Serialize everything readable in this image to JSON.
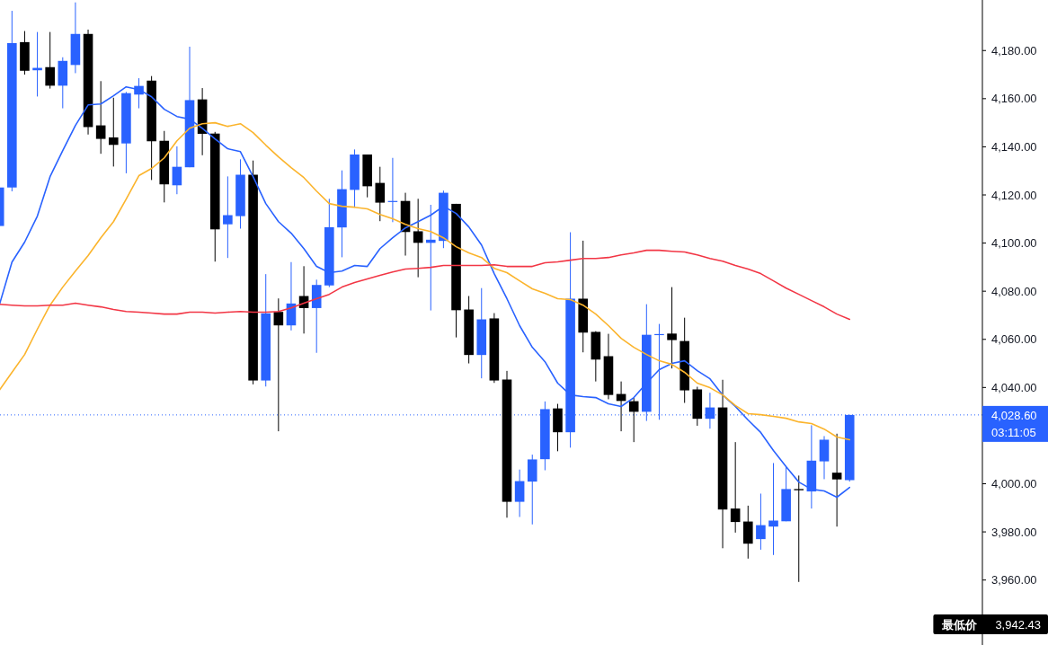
{
  "chart_data": {
    "type": "candlestick",
    "categories": [
      null,
      null,
      null,
      null,
      null,
      null,
      null,
      null,
      null,
      null,
      null,
      null,
      null,
      null,
      null,
      null,
      null,
      null,
      null,
      null,
      null,
      null,
      null,
      null,
      null,
      null,
      null,
      null,
      null,
      null,
      null,
      null,
      null,
      null,
      null,
      null,
      null,
      null,
      null,
      null,
      null,
      null,
      null,
      null,
      null,
      null,
      null,
      null,
      null,
      null,
      null,
      null,
      null,
      null,
      null,
      null,
      null,
      null,
      null,
      null,
      null,
      null,
      null,
      null,
      null,
      null,
      null,
      null
    ],
    "ohlc": [
      [
        4107.1,
        4123.1,
        4107.1,
        4123.1
      ],
      [
        4123.1,
        4196.5,
        4121.5,
        4183.1
      ],
      [
        4183.5,
        4188.1,
        4170.0,
        4171.6
      ],
      [
        4171.8,
        4187.7,
        4160.9,
        4172.8
      ],
      [
        4173.1,
        4187.7,
        4164.2,
        4165.4
      ],
      [
        4165.4,
        4177.2,
        4156.0,
        4175.7
      ],
      [
        4174.0,
        4200.0,
        4170.6,
        4186.9
      ],
      [
        4186.9,
        4188.7,
        4145.1,
        4148.2
      ],
      [
        4148.9,
        4167.3,
        4137.1,
        4143.3
      ],
      [
        4143.9,
        4160.4,
        4131.8,
        4140.8
      ],
      [
        4141.4,
        4162.8,
        4129.0,
        4162.3
      ],
      [
        4161.7,
        4168.5,
        4156.0,
        4165.3
      ],
      [
        4167.5,
        4169.4,
        4126.2,
        4142.3
      ],
      [
        4142.5,
        4146.6,
        4116.9,
        4124.4
      ],
      [
        4124.0,
        4140.2,
        4120.3,
        4131.7
      ],
      [
        4131.5,
        4181.6,
        4131.5,
        4159.4
      ],
      [
        4159.7,
        4164.4,
        4136.5,
        4145.4
      ],
      [
        4145.5,
        4146.2,
        4092.3,
        4105.7
      ],
      [
        4107.8,
        4127.7,
        4093.8,
        4111.6
      ],
      [
        4111.2,
        4134.8,
        4106.0,
        4128.4
      ],
      [
        4128.4,
        4134.3,
        4041.3,
        4042.9
      ],
      [
        4042.9,
        4087.1,
        4040.4,
        4070.8
      ],
      [
        4071.4,
        4077.0,
        4021.8,
        4065.8
      ],
      [
        4065.8,
        4092.1,
        4063.7,
        4074.9
      ],
      [
        4078.0,
        4090.4,
        4062.4,
        4073.0
      ],
      [
        4073.0,
        4084.8,
        4054.4,
        4082.6
      ],
      [
        4082.4,
        4118.4,
        4081.7,
        4106.6
      ],
      [
        4106.5,
        4130.2,
        4094.1,
        4122.4
      ],
      [
        4122.1,
        4138.9,
        4114.7,
        4136.8
      ],
      [
        4136.8,
        4136.8,
        4119.0,
        4123.6
      ],
      [
        4125.0,
        4131.7,
        4109.1,
        4116.8
      ],
      [
        4117.2,
        4135.4,
        4108.7,
        4117.5
      ],
      [
        4117.5,
        4120.9,
        4094.8,
        4104.6
      ],
      [
        4104.9,
        4118.4,
        4085.8,
        4100.1
      ],
      [
        4100.1,
        4115.9,
        4072.0,
        4101.4
      ],
      [
        4100.9,
        4121.8,
        4097.9,
        4120.9
      ],
      [
        4116.3,
        4116.3,
        4060.8,
        4072.1
      ],
      [
        4072.4,
        4078.0,
        4050.0,
        4053.5
      ],
      [
        4053.5,
        4081.3,
        4043.8,
        4068.3
      ],
      [
        4068.7,
        4070.9,
        4041.9,
        4042.9
      ],
      [
        4043.3,
        4046.9,
        3985.9,
        3992.5
      ],
      [
        3992.5,
        4005.9,
        3986.2,
        4001.1
      ],
      [
        4000.9,
        4012.1,
        3983.1,
        4010.1
      ],
      [
        4010.2,
        4034.2,
        4005.6,
        4031.0
      ],
      [
        4031.3,
        4033.2,
        4013.5,
        4021.4
      ],
      [
        4021.4,
        4104.5,
        4015.0,
        4076.9
      ],
      [
        4076.9,
        4101.0,
        4054.6,
        4062.8
      ],
      [
        4063.1,
        4063.4,
        4042.5,
        4051.6
      ],
      [
        4053.0,
        4062.3,
        4035.1,
        4036.9
      ],
      [
        4037.3,
        4042.5,
        4021.8,
        4034.4
      ],
      [
        4034.3,
        4035.7,
        4017.3,
        4029.9
      ],
      [
        4029.9,
        4074.6,
        4026.1,
        4061.9
      ],
      [
        4061.8,
        4066.4,
        4026.6,
        4062.2
      ],
      [
        4062.4,
        4081.7,
        4047.9,
        4059.7
      ],
      [
        4059.3,
        4069.0,
        4033.6,
        4038.8
      ],
      [
        4039.2,
        4040.3,
        4024.1,
        4027.0
      ],
      [
        4027.0,
        4037.8,
        4022.9,
        4031.7
      ],
      [
        4031.7,
        4043.2,
        3973.2,
        3989.3
      ],
      [
        3989.7,
        4017.3,
        3979.7,
        3984.1
      ],
      [
        3984.3,
        3990.9,
        3968.9,
        3975.1
      ],
      [
        3977.0,
        3995.9,
        3972.6,
        3982.8
      ],
      [
        3982.2,
        4008.6,
        3970.4,
        3984.7
      ],
      [
        3984.4,
        4007.1,
        3984.4,
        3997.8
      ],
      [
        3997.8,
        4003.4,
        3959.2,
        3997.3
      ],
      [
        3996.8,
        4024.3,
        3989.7,
        4009.6
      ],
      [
        4009.3,
        4019.8,
        4001.9,
        4018.3
      ],
      [
        4004.6,
        4020.8,
        3982.2,
        4001.8
      ],
      [
        4001.5,
        4028.6,
        4000.9,
        4028.6
      ]
    ],
    "colors": [
      "#2962ff",
      "#2962ff",
      "#000000",
      "#2962ff",
      "#000000",
      "#2962ff",
      "#2962ff",
      "#000000",
      "#000000",
      "#000000",
      "#2962ff",
      "#2962ff",
      "#000000",
      "#000000",
      "#2962ff",
      "#2962ff",
      "#000000",
      "#000000",
      "#2962ff",
      "#2962ff",
      "#000000",
      "#2962ff",
      "#000000",
      "#2962ff",
      "#000000",
      "#2962ff",
      "#2962ff",
      "#2962ff",
      "#2962ff",
      "#000000",
      "#000000",
      "#2962ff",
      "#000000",
      "#000000",
      "#2962ff",
      "#2962ff",
      "#000000",
      "#000000",
      "#2962ff",
      "#000000",
      "#000000",
      "#2962ff",
      "#2962ff",
      "#2962ff",
      "#000000",
      "#2962ff",
      "#000000",
      "#000000",
      "#000000",
      "#000000",
      "#000000",
      "#2962ff",
      "#2962ff",
      "#000000",
      "#000000",
      "#000000",
      "#2962ff",
      "#000000",
      "#000000",
      "#000000",
      "#2962ff",
      "#2962ff",
      "#2962ff",
      "#000000",
      "#2962ff",
      "#2962ff",
      "#000000",
      "#2962ff"
    ],
    "series": [
      {
        "type": "line",
        "color": "#2962ff",
        "values": [
          4074.2,
          4092.1,
          4100.4,
          4111.2,
          4127.6,
          4138.4,
          4148.9,
          4157.4,
          4157.8,
          4161.2,
          4164.9,
          4163.8,
          4160.8,
          4155.6,
          4152.6,
          4151.5,
          4147.7,
          4143.3,
          4139.2,
          4138.0,
          4127.6,
          4116.4,
          4108.9,
          4104.1,
          4097.7,
          4090.3,
          4087.7,
          4088.4,
          4090.7,
          4090.3,
          4097.7,
          4102.2,
          4106.3,
          4108.9,
          4111.6,
          4115.3,
          4112.3,
          4106.7,
          4099.2,
          4087.3,
          4076.9,
          4065.7,
          4056.7,
          4050.7,
          4041.8,
          4036.9,
          4036.2,
          4035.8,
          4033.2,
          4032.1,
          4035.8,
          4041.8,
          4047.4,
          4050.0,
          4051.1,
          4047.0,
          4043.6,
          4036.9,
          4032.1,
          4026.5,
          4021.3,
          4013.8,
          4007.1,
          4000.7,
          3997.7,
          3997.0,
          3994.4,
          3998.5
        ]
      },
      {
        "type": "line",
        "color": "#fbb42c",
        "values": [
          4038.8,
          4046.3,
          4053.7,
          4064.2,
          4074.2,
          4081.7,
          4088.4,
          4094.8,
          4102.2,
          4108.9,
          4118.3,
          4128.0,
          4131.0,
          4135.4,
          4142.5,
          4147.7,
          4149.6,
          4150.0,
          4148.5,
          4149.6,
          4145.9,
          4140.7,
          4135.8,
          4131.3,
          4127.2,
          4121.6,
          4116.4,
          4115.3,
          4114.9,
          4114.2,
          4111.9,
          4110.1,
          4107.8,
          4106.0,
          4104.8,
          4102.2,
          4098.5,
          4095.9,
          4094.0,
          4089.5,
          4087.7,
          4084.3,
          4081.0,
          4079.1,
          4076.9,
          4076.5,
          4074.2,
          4070.5,
          4065.7,
          4060.4,
          4056.7,
          4053.7,
          4051.1,
          4049.6,
          4046.3,
          4041.8,
          4039.9,
          4036.9,
          4032.5,
          4029.1,
          4028.7,
          4028.0,
          4027.2,
          4025.7,
          4025.0,
          4022.7,
          4019.4,
          4018.3
        ]
      },
      {
        "type": "line",
        "color": "#f23645",
        "values": [
          4074.6,
          4074.2,
          4073.9,
          4073.9,
          4074.2,
          4074.2,
          4075.0,
          4074.2,
          4073.5,
          4072.4,
          4071.6,
          4071.3,
          4070.9,
          4070.5,
          4070.5,
          4071.3,
          4071.3,
          4070.9,
          4071.3,
          4071.6,
          4071.3,
          4071.3,
          4071.6,
          4073.1,
          4075.0,
          4076.9,
          4078.7,
          4081.7,
          4083.6,
          4085.1,
          4086.6,
          4088.0,
          4089.2,
          4089.5,
          4089.9,
          4090.7,
          4090.7,
          4090.7,
          4090.7,
          4091.0,
          4090.3,
          4090.3,
          4090.3,
          4091.8,
          4092.2,
          4092.9,
          4093.6,
          4093.6,
          4094.0,
          4095.1,
          4095.9,
          4097.0,
          4097.0,
          4096.6,
          4096.3,
          4095.1,
          4093.6,
          4092.5,
          4090.7,
          4089.2,
          4087.3,
          4084.3,
          4081.3,
          4078.7,
          4076.1,
          4073.5,
          4070.5,
          4068.3
        ]
      }
    ],
    "ylim": [
      3933,
      4201
    ],
    "yticks": [
      {
        "value": 3960,
        "label": "3,960.00"
      },
      {
        "value": 3980,
        "label": "3,980.00"
      },
      {
        "value": 4000,
        "label": "4,000.00"
      },
      {
        "value": 4040,
        "label": "4,040.00"
      },
      {
        "value": 4060,
        "label": "4,060.00"
      },
      {
        "value": 4080,
        "label": "4,080.00"
      },
      {
        "value": 4100,
        "label": "4,100.00"
      },
      {
        "value": 4120,
        "label": "4,120.00"
      },
      {
        "value": 4140,
        "label": "4,140.00"
      },
      {
        "value": 4160,
        "label": "4,160.00"
      },
      {
        "value": 4180,
        "label": "4,180.00"
      }
    ],
    "ref_lines": [
      {
        "axis": "y",
        "value": 4028.6,
        "label": "4,028.60",
        "color": "#2962ff",
        "line_style": "dotted"
      }
    ],
    "annotations": [
      "03:11:05",
      "最低价",
      "3,942.43"
    ],
    "tick_labels": "y"
  }
}
